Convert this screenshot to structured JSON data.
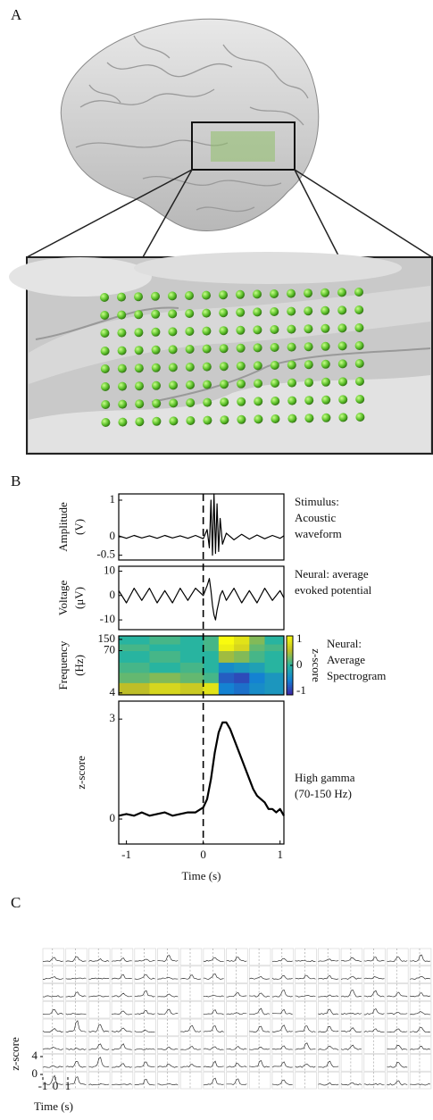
{
  "panel_labels": [
    "A",
    "B",
    "C"
  ],
  "chart_data": [
    {
      "type": "line",
      "ylabel": [
        "Amplitude",
        "(V)"
      ],
      "annotation": [
        "Stimulus:",
        "Acoustic",
        "waveform"
      ],
      "xlim": [
        -1.1,
        1.05
      ],
      "ylim": [
        -0.63,
        1.17
      ],
      "yticks": [
        1,
        0,
        -0.5
      ],
      "color": "#000000",
      "x": [
        -1.1,
        -1,
        -0.9,
        -0.8,
        -0.7,
        -0.6,
        -0.5,
        -0.4,
        -0.3,
        -0.2,
        -0.1,
        0,
        0.05,
        0.08,
        0.1,
        0.12,
        0.14,
        0.16,
        0.18,
        0.2,
        0.22,
        0.25,
        0.3,
        0.4,
        0.5,
        0.6,
        0.7,
        0.8,
        0.9,
        1,
        1.05
      ],
      "values": [
        0.03,
        -0.04,
        0.04,
        -0.03,
        0.03,
        -0.04,
        0.04,
        -0.03,
        0.03,
        -0.04,
        0.04,
        -0.05,
        0.2,
        -0.3,
        1.0,
        -0.5,
        1.17,
        -0.45,
        0.9,
        -0.4,
        0.5,
        -0.2,
        0.1,
        -0.08,
        0.07,
        -0.06,
        0.05,
        -0.05,
        0.04,
        -0.04,
        0.03
      ]
    },
    {
      "type": "line",
      "ylabel": [
        "Voltage",
        "(μV)"
      ],
      "annotation": [
        "Neural: average",
        "evoked potential"
      ],
      "xlim": [
        -1.1,
        1.05
      ],
      "ylim": [
        -14,
        12
      ],
      "yticks": [
        10,
        0,
        -10
      ],
      "color": "#000000",
      "x": [
        -1.1,
        -1,
        -0.9,
        -0.8,
        -0.7,
        -0.6,
        -0.5,
        -0.4,
        -0.3,
        -0.2,
        -0.1,
        0,
        0.05,
        0.08,
        0.1,
        0.12,
        0.14,
        0.16,
        0.18,
        0.2,
        0.22,
        0.25,
        0.3,
        0.4,
        0.5,
        0.6,
        0.7,
        0.8,
        0.9,
        1,
        1.05
      ],
      "values": [
        2,
        -3,
        3,
        -2,
        3,
        -3,
        2,
        -3,
        3,
        -2,
        3,
        0,
        4,
        7,
        2,
        -4,
        -8,
        -10,
        -6,
        -3,
        0,
        2,
        -2,
        3,
        -3,
        2,
        -3,
        3,
        -2,
        2,
        -1
      ]
    },
    {
      "type": "heatmap",
      "ylabel": [
        "Frequency",
        "(Hz)"
      ],
      "annotation": [
        "Neural:",
        "Average",
        "Spectrogram"
      ],
      "xlim": [
        -1.1,
        1.05
      ],
      "ylim": [
        3.5,
        190
      ],
      "ylog": true,
      "yticks": [
        150,
        70,
        4
      ],
      "xbins": [
        -1.1,
        -0.7,
        -0.3,
        0,
        0.2,
        0.4,
        0.6,
        0.8,
        1.05
      ],
      "ybins": [
        3.5,
        8,
        16,
        32,
        70,
        110,
        190
      ],
      "values": [
        [
          0.5,
          0.7,
          0.6,
          0.8,
          -0.5,
          -0.6,
          -0.4,
          -0.3
        ],
        [
          0.2,
          0.3,
          0.2,
          0.1,
          -0.7,
          -0.8,
          -0.5,
          -0.3
        ],
        [
          0.1,
          0,
          0.1,
          0,
          -0.4,
          -0.3,
          -0.2,
          0
        ],
        [
          0,
          0.1,
          0,
          0,
          0.4,
          0.3,
          0.1,
          0
        ],
        [
          0.1,
          0,
          0,
          0.1,
          0.9,
          0.7,
          0.2,
          0.1
        ],
        [
          0,
          0.1,
          0,
          0.1,
          1,
          0.8,
          0.3,
          0
        ]
      ],
      "colormap": "parula",
      "clim": [
        -1,
        1
      ],
      "colorbar_ticks": [
        1,
        0,
        -1
      ],
      "colorbar_label": "z-score"
    },
    {
      "type": "line",
      "ylabel": [
        "z-score"
      ],
      "annotation": [
        "High gamma",
        "(70-150 Hz)"
      ],
      "xlabel": "Time (s)",
      "xlim": [
        -1.1,
        1.05
      ],
      "ylim": [
        -0.75,
        3.54
      ],
      "yticks": [
        3,
        0
      ],
      "xticks": [
        -1,
        0,
        1
      ],
      "onset": 0,
      "color": "#000000",
      "x": [
        -1.1,
        -1,
        -0.9,
        -0.8,
        -0.7,
        -0.6,
        -0.5,
        -0.4,
        -0.3,
        -0.2,
        -0.1,
        0,
        0.05,
        0.1,
        0.15,
        0.2,
        0.25,
        0.3,
        0.35,
        0.4,
        0.45,
        0.5,
        0.55,
        0.6,
        0.65,
        0.7,
        0.75,
        0.8,
        0.85,
        0.9,
        0.95,
        1,
        1.05
      ],
      "values": [
        0.1,
        0.15,
        0.1,
        0.2,
        0.1,
        0.15,
        0.2,
        0.1,
        0.15,
        0.2,
        0.2,
        0.35,
        0.6,
        1.2,
        2.0,
        2.6,
        2.9,
        2.9,
        2.7,
        2.4,
        2.1,
        1.8,
        1.5,
        1.2,
        0.9,
        0.7,
        0.6,
        0.5,
        0.3,
        0.3,
        0.2,
        0.3,
        0.1
      ]
    },
    {
      "type": "small-multiples",
      "ylabel": "z-score",
      "xlabel": "Time (s)",
      "xlim": [
        -1,
        1
      ],
      "ylim": [
        0,
        4
      ],
      "yticks": [
        4,
        0
      ],
      "xticks": [
        -1,
        0,
        1
      ]
    }
  ]
}
